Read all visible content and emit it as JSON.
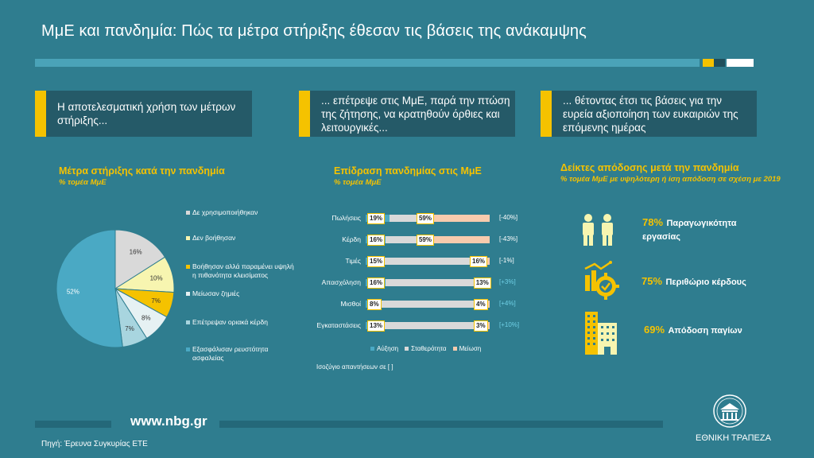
{
  "header": {
    "title": "ΜμΕ και πανδημία: Πώς τα μέτρα στήριξης έθεσαν τις βάσεις της ανάκαμψης"
  },
  "boxes": [
    {
      "text": "Η αποτελεσματική χρήση των μέτρων στήριξης..."
    },
    {
      "text": "... επέτρεψε στις ΜμΕ, παρά την πτώση της ζήτησης, να κρατηθούν όρθιες και λειτουργικές..."
    },
    {
      "text": "... θέτοντας έτσι τις βάσεις για την ευρεία αξιοποίηση των ευκαιριών της επόμενης ημέρας"
    }
  ],
  "colors": {
    "background": "#2f7d8f",
    "accent": "#f5c200",
    "box": "#255a68"
  },
  "chart_data": [
    {
      "type": "pie",
      "title": "Μέτρα στήριξης κατά την πανδημία",
      "subtitle": "% τομέα ΜμΕ",
      "slices": [
        {
          "label": "Δε χρησιμοποιήθηκαν",
          "value": 16,
          "color": "#d9d9d9"
        },
        {
          "label": "Δεν βοήθησαν",
          "value": 10,
          "color": "#f7f5b0"
        },
        {
          "label": "Βοήθησαν αλλά παραμένει υψηλή η πιθανότητα κλεισίματος",
          "value": 7,
          "color": "#f5c200"
        },
        {
          "label": "Μείωσαν ζημιές",
          "value": 8,
          "color": "#e6f1f3"
        },
        {
          "label": "Επέτρεψαν οριακά κέρδη",
          "value": 7,
          "color": "#a8d5df"
        },
        {
          "label": "Εξασφάλισαν ρευστότητα ασφαλείας",
          "value": 52,
          "color": "#4aa9c4"
        }
      ]
    },
    {
      "type": "bar",
      "title": "Επίδραση πανδημίας στις ΜμΕ",
      "subtitle": "% τομέα ΜμΕ",
      "categories": [
        "Πωλήσεις",
        "Κέρδη",
        "Τιμές",
        "Απασχόληση",
        "Μισθοί",
        "Εγκαταστάσεις"
      ],
      "series": [
        {
          "name": "Αύξηση",
          "values": [
            19,
            16,
            15,
            16,
            8,
            13
          ],
          "color": "#4aa9c4"
        },
        {
          "name": "Σταθερότητα",
          "values": [
            22,
            25,
            69,
            71,
            88,
            84
          ],
          "color": "#d9d9d9"
        },
        {
          "name": "Μείωση",
          "values": [
            59,
            59,
            16,
            13,
            4,
            3
          ],
          "color": "#f8cbad"
        }
      ],
      "balances": [
        "[-40%]",
        "[-43%]",
        "[-1%]",
        "[+3%]",
        "[+4%]",
        "[+10%]"
      ],
      "balance_positive": [
        false,
        false,
        false,
        true,
        true,
        true
      ],
      "note": "Ισοζύγιο απαντήσεων σε [ ]"
    }
  ],
  "kpis": {
    "title": "Δείκτες απόδοσης μετά την πανδημία",
    "subtitle": "% τομέα ΜμΕ με υψηλότερη ή ίση απόδοση σε σχέση με 2019",
    "items": [
      {
        "pct": "78%",
        "label": "Παραγωγικότητα εργασίας",
        "icon": "workers-icon"
      },
      {
        "pct": "75%",
        "label": "Περιθώριο κέρδους",
        "icon": "profit-gear-icon"
      },
      {
        "pct": "69%",
        "label": "Απόδοση παγίων",
        "icon": "building-icon"
      }
    ]
  },
  "footer": {
    "url": "www.nbg.gr",
    "source": "Πηγή: Έρευνα Συγκυρίας ΕΤΕ",
    "bank": "ΕΘΝΙΚΗ ΤΡΑΠΕΖΑ"
  }
}
